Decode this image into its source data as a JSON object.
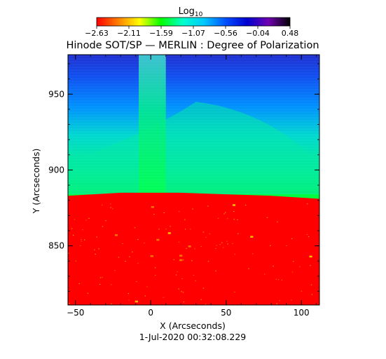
{
  "chart_data": {
    "type": "heatmap",
    "title": "Hinode SOT/SP — MERLIN : Degree of Polarization",
    "xlabel": "X (Arcseconds)",
    "ylabel": "Y (Arcseconds)",
    "timestamp": "1-Jul-2020 00:32:08.229",
    "xlim": [
      -55,
      112
    ],
    "ylim": [
      811,
      976
    ],
    "x_ticks": [
      -50,
      0,
      50,
      100
    ],
    "y_ticks": [
      850,
      900,
      950
    ],
    "x_tick_labels": [
      "−50",
      "0",
      "50",
      "100"
    ],
    "y_tick_labels": [
      "850",
      "900",
      "950"
    ],
    "limb_y": [
      883,
      885,
      885,
      884,
      883,
      881
    ],
    "limb_x": [
      -55,
      -20,
      20,
      50,
      80,
      112
    ],
    "colorbar": {
      "label_base": "Log",
      "label_sub": "10",
      "min": -2.63,
      "max": 0.48,
      "ticks": [
        "−2.63",
        "−2.11",
        "−1.59",
        "−1.07",
        "−0.56",
        "−0.04",
        "0.48"
      ],
      "colormap": [
        "#ff0000",
        "#ff7f00",
        "#ffff00",
        "#00ff00",
        "#00ffcc",
        "#00c8ff",
        "#0050ff",
        "#0000d0",
        "#7000b0",
        "#000000"
      ]
    },
    "colors": {
      "disk": "#ff0000",
      "disk_flecks": "#ffd800",
      "above_limb": "#00ff20",
      "mid_corona": "#00e8a0",
      "upper_corona": "#0070ff",
      "top_corona": "#1838e0",
      "jet": "#00e870"
    }
  }
}
